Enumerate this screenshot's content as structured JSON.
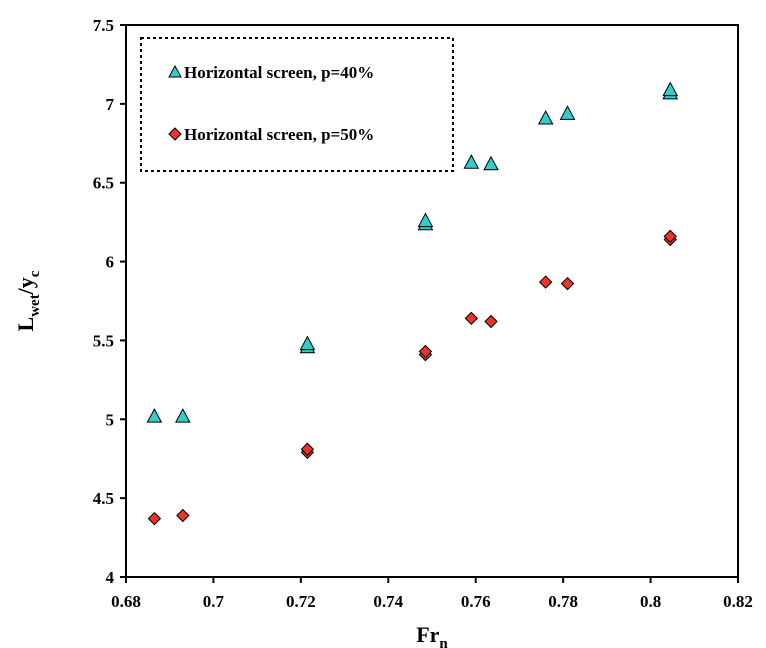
{
  "chart_data": {
    "type": "scatter",
    "xlabel": {
      "main": "Fr",
      "sub": "n"
    },
    "ylabel": {
      "main": "L",
      "sub1": "wet",
      "mid": "/y",
      "sub2": "c"
    },
    "xlim": [
      0.68,
      0.82
    ],
    "ylim": [
      4,
      7.5
    ],
    "xticks": [
      "0.68",
      "0.7",
      "0.72",
      "0.74",
      "0.76",
      "0.78",
      "0.8",
      "0.82"
    ],
    "yticks": [
      "4",
      "4.5",
      "5",
      "5.5",
      "6",
      "6.5",
      "7",
      "7.5"
    ],
    "grid": false,
    "legend_position": "top-left",
    "series": [
      {
        "name": "Horizontal screen, p=40%",
        "marker": "triangle",
        "color": "#33CCCC",
        "points": [
          [
            0.6865,
            5.02
          ],
          [
            0.693,
            5.02
          ],
          [
            0.7215,
            5.46
          ],
          [
            0.7215,
            5.48
          ],
          [
            0.7485,
            6.24
          ],
          [
            0.7485,
            6.26
          ],
          [
            0.759,
            6.63
          ],
          [
            0.7635,
            6.62
          ],
          [
            0.776,
            6.91
          ],
          [
            0.781,
            6.94
          ],
          [
            0.8045,
            7.07
          ],
          [
            0.8045,
            7.09
          ]
        ]
      },
      {
        "name": "Horizontal screen, p=50%",
        "marker": "diamond",
        "color": "#E8342A",
        "points": [
          [
            0.6865,
            4.37
          ],
          [
            0.693,
            4.39
          ],
          [
            0.7215,
            4.79
          ],
          [
            0.7215,
            4.81
          ],
          [
            0.7485,
            5.41
          ],
          [
            0.7485,
            5.43
          ],
          [
            0.759,
            5.64
          ],
          [
            0.7635,
            5.62
          ],
          [
            0.776,
            5.87
          ],
          [
            0.781,
            5.86
          ],
          [
            0.8045,
            6.14
          ],
          [
            0.8045,
            6.16
          ]
        ]
      }
    ]
  }
}
